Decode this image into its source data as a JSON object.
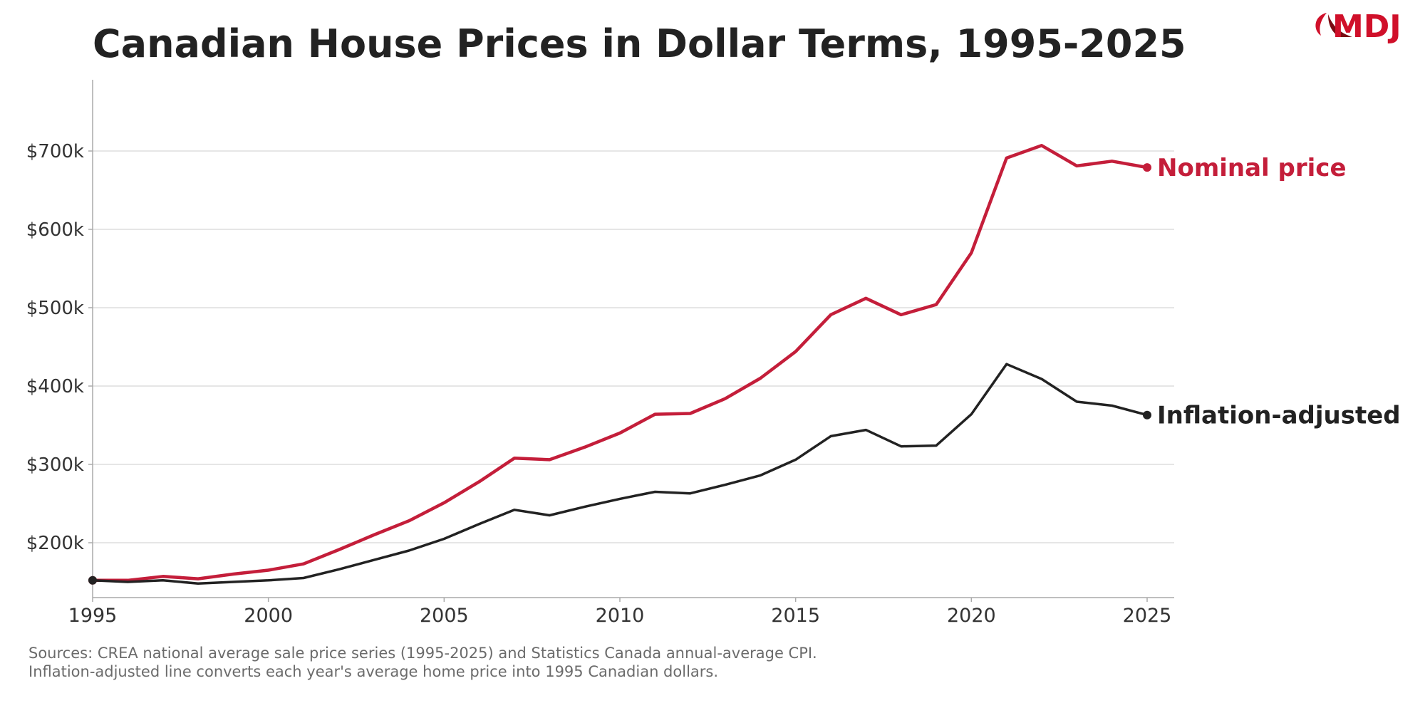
{
  "title": "Canadian House Prices in Dollar Terms, 1995-2025",
  "logo_text": "MDJ",
  "sources": [
    "Sources: CREA national average sale price series (1995-2025) and Statistics Canada annual-average CPI.",
    "Inflation-adjusted line converts each year's average home price into 1995 Canadian dollars."
  ],
  "colors": {
    "nominal": "#c41e3a",
    "real": "#222222",
    "logo": "#d0102a"
  },
  "chart_data": {
    "type": "line",
    "title": "Canadian House Prices in Dollar Terms, 1995-2025",
    "xlabel": "",
    "ylabel": "",
    "xlim": [
      1995,
      2025.8
    ],
    "ylim": [
      130000,
      790000
    ],
    "grid": "horizontal",
    "legend": "direct labels at line ends (right)",
    "x_ticks": [
      1995,
      2000,
      2005,
      2010,
      2015,
      2020,
      2025
    ],
    "y_ticks": [
      200000,
      300000,
      400000,
      500000,
      600000,
      700000
    ],
    "y_tick_labels": [
      "$200k",
      "$300k",
      "$400k",
      "$500k",
      "$600k",
      "$700k"
    ],
    "x": [
      1995,
      1996,
      1997,
      1998,
      1999,
      2000,
      2001,
      2002,
      2003,
      2004,
      2005,
      2006,
      2007,
      2008,
      2009,
      2010,
      2011,
      2012,
      2013,
      2014,
      2015,
      2016,
      2017,
      2018,
      2019,
      2020,
      2021,
      2022,
      2023,
      2024,
      2025
    ],
    "series": [
      {
        "name": "Nominal price",
        "color": "#c41e3a",
        "values": [
          152000,
          152000,
          157000,
          154000,
          160000,
          165000,
          173000,
          191000,
          210000,
          228000,
          251000,
          278000,
          308000,
          306000,
          322000,
          340000,
          364000,
          365000,
          384000,
          410000,
          444000,
          491000,
          512000,
          491000,
          504000,
          570000,
          691000,
          707000,
          681000,
          687000,
          679000
        ]
      },
      {
        "name": "Inflation-adjusted",
        "color": "#222222",
        "values": [
          152000,
          150000,
          152000,
          148000,
          150000,
          152000,
          155000,
          166000,
          178000,
          190000,
          205000,
          224000,
          242000,
          235000,
          246000,
          256000,
          265000,
          263000,
          274000,
          286000,
          306000,
          336000,
          344000,
          323000,
          324000,
          364000,
          428000,
          409000,
          380000,
          375000,
          363000
        ]
      }
    ]
  }
}
